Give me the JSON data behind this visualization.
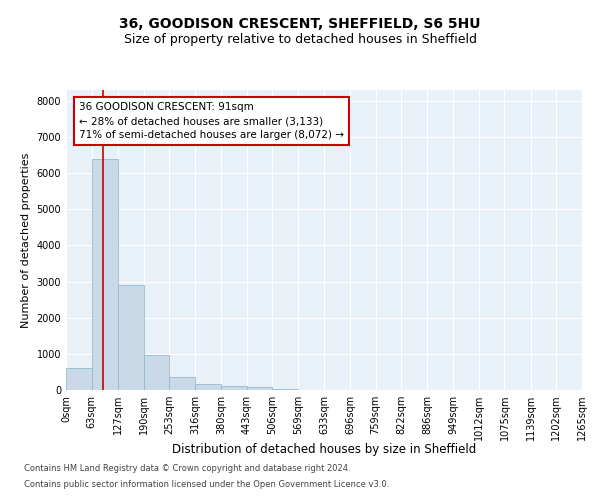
{
  "title1": "36, GOODISON CRESCENT, SHEFFIELD, S6 5HU",
  "title2": "Size of property relative to detached houses in Sheffield",
  "xlabel": "Distribution of detached houses by size in Sheffield",
  "ylabel": "Number of detached properties",
  "bin_edges": [
    0,
    63,
    127,
    190,
    253,
    316,
    380,
    443,
    506,
    569,
    633,
    696,
    759,
    822,
    886,
    949,
    1012,
    1075,
    1139,
    1202,
    1265
  ],
  "bar_heights": [
    600,
    6400,
    2900,
    960,
    360,
    160,
    100,
    70,
    20,
    10,
    5,
    3,
    2,
    1,
    1,
    0,
    0,
    0,
    0,
    0
  ],
  "bar_color": "#c9d9e8",
  "bar_edgecolor": "#8ab4cc",
  "property_line_x": 91,
  "property_line_color": "#cc0000",
  "ylim": [
    0,
    8300
  ],
  "yticks": [
    0,
    1000,
    2000,
    3000,
    4000,
    5000,
    6000,
    7000,
    8000
  ],
  "annotation_title": "36 GOODISON CRESCENT: 91sqm",
  "annotation_line1": "← 28% of detached houses are smaller (3,133)",
  "annotation_line2": "71% of semi-detached houses are larger (8,072) →",
  "annotation_box_color": "#cc0000",
  "footer_line1": "Contains HM Land Registry data © Crown copyright and database right 2024.",
  "footer_line2": "Contains public sector information licensed under the Open Government Licence v3.0.",
  "plot_bg_color": "#e8f0f8",
  "title1_fontsize": 10,
  "title2_fontsize": 9,
  "xlabel_fontsize": 8.5,
  "ylabel_fontsize": 8,
  "tick_fontsize": 7,
  "annotation_fontsize": 7.5,
  "footer_fontsize": 6
}
